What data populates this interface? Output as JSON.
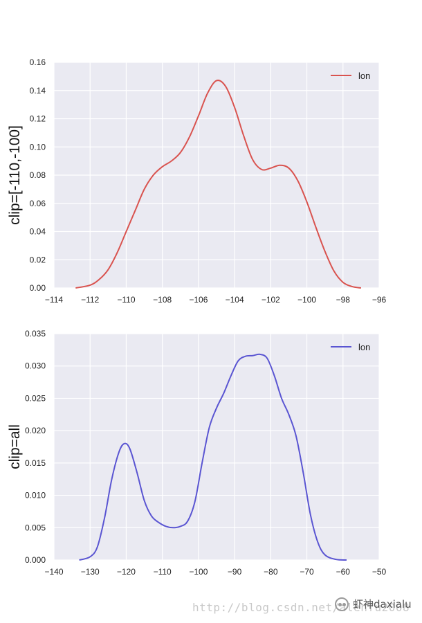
{
  "chart_data": [
    {
      "type": "line",
      "ylabel": "clip=[-110,-100]",
      "xlim": [
        -114,
        -96
      ],
      "ylim": [
        0,
        0.16
      ],
      "xticks": [
        "−114",
        "−112",
        "−110",
        "−108",
        "−106",
        "−104",
        "−102",
        "−100",
        "−98",
        "−96"
      ],
      "yticks": [
        "0.00",
        "0.02",
        "0.04",
        "0.06",
        "0.08",
        "0.10",
        "0.12",
        "0.14",
        "0.16"
      ],
      "grid": true,
      "legend": "top-right",
      "series": [
        {
          "name": "lon",
          "color": "#d9534f",
          "x": [
            -112.8,
            -112.0,
            -111.5,
            -111.0,
            -110.5,
            -110.0,
            -109.5,
            -109.0,
            -108.5,
            -108.0,
            -107.5,
            -107.0,
            -106.5,
            -106.0,
            -105.5,
            -105.0,
            -104.5,
            -104.0,
            -103.5,
            -103.0,
            -102.5,
            -102.0,
            -101.5,
            -101.0,
            -100.5,
            -100.0,
            -99.5,
            -99.0,
            -98.5,
            -98.0,
            -97.5,
            -97.0
          ],
          "y": [
            0.0,
            0.002,
            0.006,
            0.013,
            0.025,
            0.04,
            0.055,
            0.07,
            0.08,
            0.086,
            0.09,
            0.096,
            0.107,
            0.122,
            0.138,
            0.147,
            0.143,
            0.128,
            0.108,
            0.091,
            0.084,
            0.085,
            0.087,
            0.085,
            0.076,
            0.061,
            0.043,
            0.026,
            0.012,
            0.004,
            0.001,
            0.0
          ]
        }
      ]
    },
    {
      "type": "line",
      "ylabel": "clip=all",
      "xlim": [
        -140,
        -50
      ],
      "ylim": [
        0,
        0.035
      ],
      "xticks": [
        "−140",
        "−130",
        "−120",
        "−110",
        "−100",
        "−90",
        "−80",
        "−70",
        "−60",
        "−50"
      ],
      "yticks": [
        "0.000",
        "0.005",
        "0.010",
        "0.015",
        "0.020",
        "0.025",
        "0.030",
        "0.035"
      ],
      "grid": true,
      "legend": "top-right",
      "series": [
        {
          "name": "lon",
          "color": "#5a55d2",
          "x": [
            -133,
            -130,
            -128,
            -126,
            -124,
            -122,
            -120.5,
            -119,
            -117,
            -115,
            -113,
            -111,
            -109,
            -107,
            -105,
            -103,
            -101,
            -99,
            -97,
            -95,
            -93,
            -91,
            -89,
            -87,
            -85,
            -83,
            -81,
            -79,
            -77,
            -75,
            -73,
            -71,
            -69,
            -67,
            -65,
            -62,
            -59
          ],
          "y": [
            0.0,
            0.0005,
            0.002,
            0.0065,
            0.0125,
            0.0167,
            0.018,
            0.0172,
            0.0135,
            0.0092,
            0.0068,
            0.0058,
            0.0052,
            0.005,
            0.0052,
            0.006,
            0.009,
            0.015,
            0.0205,
            0.0235,
            0.0258,
            0.0285,
            0.0308,
            0.0315,
            0.0316,
            0.0318,
            0.0312,
            0.0285,
            0.025,
            0.0225,
            0.0192,
            0.0135,
            0.007,
            0.0028,
            0.0008,
            0.0001,
            0.0
          ]
        }
      ]
    }
  ],
  "watermark": {
    "url": "http://blog.csdn.net/alenfu2008",
    "brand": "虾神daxialu",
    "icon": "wechat-icon"
  }
}
